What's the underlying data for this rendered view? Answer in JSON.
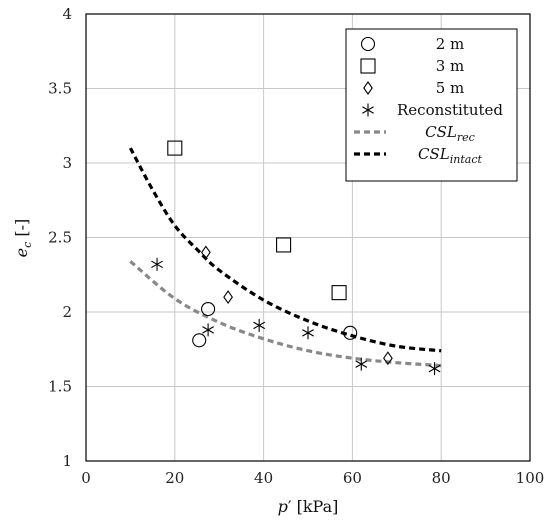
{
  "chart_data": {
    "type": "scatter",
    "title": "",
    "xlabel": {
      "base": "p",
      "prime": "′",
      "unit": " [kPa]"
    },
    "ylabel": {
      "base": "e",
      "sub": "c",
      "unit": " [-]"
    },
    "xlim": [
      0,
      100
    ],
    "ylim": [
      1,
      4
    ],
    "xticks": [
      0,
      20,
      40,
      60,
      80,
      100
    ],
    "yticks": [
      1,
      1.5,
      2,
      2.5,
      3,
      3.5,
      4
    ],
    "xtick_labels": [
      "0",
      "20",
      "40",
      "60",
      "80",
      "100"
    ],
    "ytick_labels": [
      "1",
      "1.5",
      "2",
      "2.5",
      "3",
      "3.5",
      "4"
    ],
    "grid": true,
    "legend_position": "top-right",
    "series": [
      {
        "name": "2 m",
        "marker": "circle",
        "points": [
          [
            25.5,
            1.81
          ],
          [
            27.5,
            2.02
          ],
          [
            59.5,
            1.86
          ]
        ]
      },
      {
        "name": "3 m",
        "marker": "square",
        "points": [
          [
            20,
            3.1
          ],
          [
            44.5,
            2.45
          ],
          [
            57,
            2.13
          ]
        ]
      },
      {
        "name": "5 m",
        "marker": "diamond",
        "points": [
          [
            27,
            2.4
          ],
          [
            32,
            2.1
          ],
          [
            68,
            1.69
          ]
        ]
      },
      {
        "name": "Reconstituted",
        "marker": "asterisk",
        "points": [
          [
            16,
            2.32
          ],
          [
            27.5,
            1.88
          ],
          [
            39,
            1.91
          ],
          [
            50,
            1.86
          ],
          [
            62,
            1.65
          ],
          [
            78.5,
            1.62
          ]
        ]
      }
    ],
    "lines": [
      {
        "name_base": "CSL",
        "name_sub": "rec",
        "style": "dashed",
        "color": "#888888",
        "points": [
          [
            10,
            2.34
          ],
          [
            20,
            2.09
          ],
          [
            30,
            1.93
          ],
          [
            40,
            1.82
          ],
          [
            50,
            1.74
          ],
          [
            60,
            1.69
          ],
          [
            70,
            1.66
          ],
          [
            80,
            1.64
          ]
        ]
      },
      {
        "name_base": "CSL",
        "name_sub": "intact",
        "style": "dashed",
        "color": "#000000",
        "points": [
          [
            10,
            3.1
          ],
          [
            15,
            2.82
          ],
          [
            20,
            2.58
          ],
          [
            25,
            2.42
          ],
          [
            30,
            2.28
          ],
          [
            40,
            2.08
          ],
          [
            50,
            1.94
          ],
          [
            60,
            1.84
          ],
          [
            70,
            1.77
          ],
          [
            80,
            1.74
          ]
        ]
      }
    ]
  }
}
